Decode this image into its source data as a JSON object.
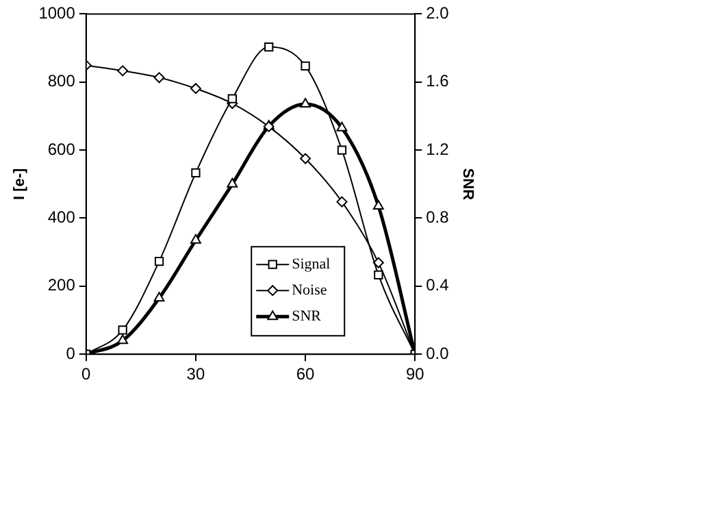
{
  "chart_data": {
    "type": "line",
    "ylabel": "I [e-]",
    "y2label": "SNR",
    "x": [
      0,
      10,
      20,
      30,
      40,
      50,
      60,
      70,
      80,
      90
    ],
    "series": [
      {
        "name": "Signal",
        "color": "#000000",
        "marker": "square",
        "values": [
          0,
          71,
          273,
          533,
          751,
          903,
          847,
          600,
          233,
          0
        ]
      },
      {
        "name": "Noise",
        "color": "#000000",
        "marker": "diamond",
        "values": [
          849,
          833,
          813,
          781,
          737,
          669,
          575,
          448,
          269,
          0
        ]
      },
      {
        "name": "SNR",
        "color": "#000000",
        "marker": "triangle",
        "axis": "y2",
        "values": [
          0,
          0.08,
          0.33,
          0.67,
          1.0,
          1.34,
          1.47,
          1.33,
          0.87,
          0
        ]
      }
    ],
    "xlim": [
      0,
      90
    ],
    "xticks": [
      0,
      30,
      60,
      90
    ],
    "ylim": [
      0,
      1000
    ],
    "yticks": [
      0,
      200,
      400,
      600,
      800,
      1000
    ],
    "y2lim": [
      0,
      2
    ],
    "y2ticks": [
      {
        "value": 0,
        "label": "0.0"
      },
      {
        "value": 0.4,
        "label": "0.4"
      },
      {
        "value": 0.8,
        "label": "0.8"
      },
      {
        "value": 1.2,
        "label": "1.2"
      },
      {
        "value": 1.6,
        "label": "1.6"
      },
      {
        "value": 2,
        "label": "2.0"
      }
    ],
    "grid": false,
    "legend": "bottom right"
  }
}
